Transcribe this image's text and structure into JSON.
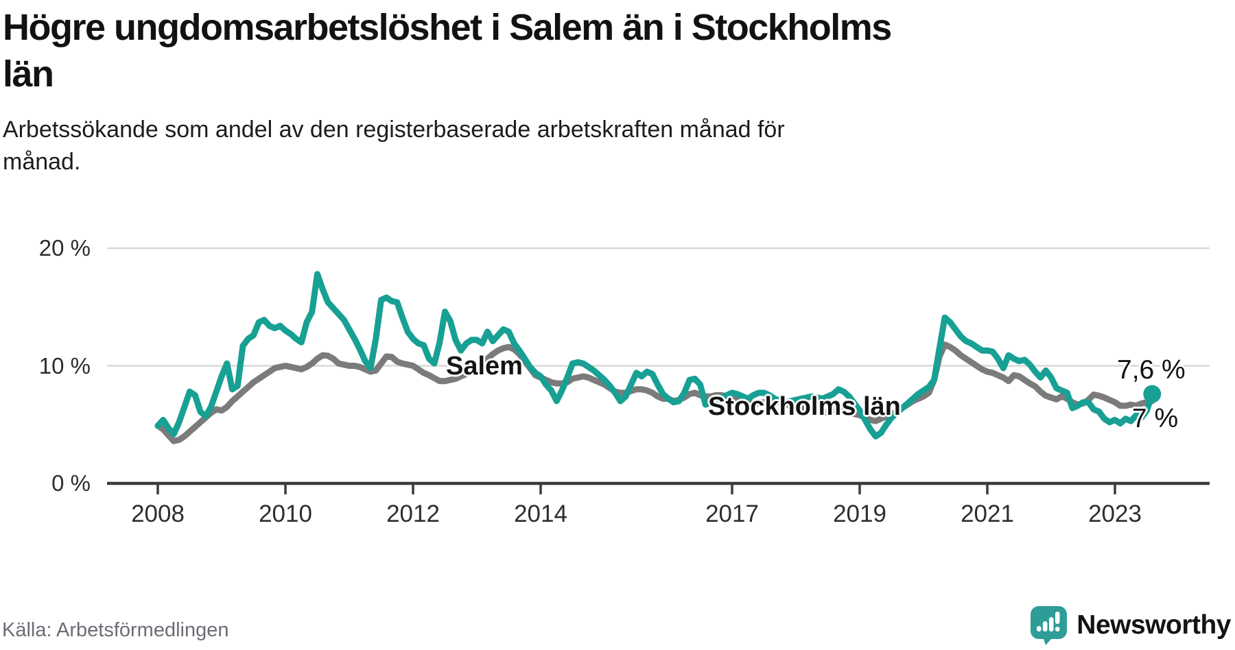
{
  "header": {
    "title_lines": [
      "Högre ungdomsarbetslöshet i Salem än i Stockholms",
      "län"
    ],
    "subtitle_lines": [
      "Arbetssökande som andel av den registerbaserade arbetskraften månad för",
      "månad."
    ]
  },
  "chart_data": {
    "type": "line",
    "unit": "%",
    "x_start": "2008-01",
    "x_frequency": "monthly",
    "x_ticks": [
      2008,
      2010,
      2012,
      2014,
      2017,
      2019,
      2021,
      2023
    ],
    "y_ticks": [
      {
        "value": 20,
        "label": "20 %"
      },
      {
        "value": 10,
        "label": "10 %"
      },
      {
        "value": 0,
        "label": "0 %"
      }
    ],
    "ylim": [
      0,
      21
    ],
    "grid": "horizontal",
    "legend_position": "inline-labels",
    "series": [
      {
        "name": "Salem",
        "label": "Salem",
        "color": "#17A093",
        "end_label": "7,6 %",
        "end_value": 7.6,
        "end_marker": true,
        "values": [
          4.9,
          5.4,
          4.7,
          4.2,
          5.2,
          6.5,
          7.8,
          7.5,
          6.1,
          5.7,
          6.5,
          7.8,
          9.1,
          10.2,
          8.0,
          8.3,
          11.7,
          12.3,
          12.6,
          13.7,
          13.9,
          13.4,
          13.2,
          13.4,
          13.0,
          12.7,
          12.3,
          12.0,
          13.7,
          14.6,
          17.8,
          16.5,
          15.4,
          14.9,
          14.4,
          13.9,
          13.1,
          12.3,
          11.4,
          10.4,
          9.8,
          12.3,
          15.6,
          15.8,
          15.5,
          15.4,
          14.1,
          12.9,
          12.3,
          11.9,
          11.75,
          10.6,
          10.2,
          12.0,
          14.6,
          13.8,
          12.2,
          11.3,
          11.9,
          12.2,
          12.2,
          11.9,
          12.9,
          12.1,
          12.6,
          13.1,
          12.9,
          11.9,
          11.3,
          10.6,
          9.9,
          9.4,
          9.1,
          8.4,
          7.9,
          7.0,
          7.9,
          9.0,
          10.2,
          10.3,
          10.2,
          9.9,
          9.6,
          9.2,
          8.8,
          8.3,
          7.7,
          7.0,
          7.4,
          8.4,
          9.4,
          9.1,
          9.5,
          9.3,
          8.4,
          7.6,
          7.2,
          6.9,
          7.0,
          7.7,
          8.8,
          8.9,
          8.4,
          6.7,
          6.9,
          7.1,
          7.3,
          7.5,
          7.7,
          7.6,
          7.4,
          7.2,
          7.5,
          7.7,
          7.7,
          7.5,
          7.2,
          7.0,
          6.9,
          7.0,
          7.1,
          7.2,
          7.3,
          7.4,
          7.3,
          7.2,
          7.4,
          7.6,
          8.0,
          7.8,
          7.4,
          6.8,
          6.2,
          5.4,
          4.6,
          4.0,
          4.3,
          5.0,
          5.6,
          6.0,
          6.4,
          6.8,
          7.2,
          7.6,
          7.9,
          8.2,
          8.8,
          11.5,
          14.1,
          13.7,
          13.1,
          12.5,
          12.1,
          11.9,
          11.6,
          11.3,
          11.3,
          11.2,
          10.6,
          9.8,
          10.9,
          10.6,
          10.4,
          10.5,
          10.1,
          9.5,
          9.0,
          9.6,
          9.0,
          8.1,
          7.9,
          7.7,
          6.4,
          6.6,
          6.9,
          6.9,
          6.3,
          6.1,
          5.5,
          5.2,
          5.4,
          5.1,
          5.5,
          5.3,
          5.8,
          5.6,
          6.2,
          7.6
        ]
      },
      {
        "name": "Stockholms län",
        "label": "Stockholms län",
        "color": "#7B7B7B",
        "end_label": "7 %",
        "end_value": 7.0,
        "end_marker": false,
        "values": [
          4.9,
          4.6,
          4.1,
          3.6,
          3.7,
          4.0,
          4.4,
          4.8,
          5.2,
          5.6,
          6.0,
          6.3,
          6.2,
          6.5,
          7.0,
          7.4,
          7.8,
          8.2,
          8.6,
          8.9,
          9.2,
          9.5,
          9.8,
          9.9,
          10.0,
          9.9,
          9.8,
          9.7,
          9.9,
          10.2,
          10.6,
          10.9,
          10.85,
          10.6,
          10.2,
          10.1,
          10.0,
          10.0,
          9.9,
          9.7,
          9.5,
          9.6,
          10.2,
          10.8,
          10.75,
          10.35,
          10.2,
          10.1,
          10.0,
          9.7,
          9.4,
          9.2,
          8.95,
          8.7,
          8.7,
          8.8,
          8.9,
          9.1,
          9.3,
          9.6,
          9.8,
          10.2,
          10.6,
          11.0,
          11.3,
          11.5,
          11.6,
          11.4,
          11.0,
          10.4,
          9.8,
          9.2,
          9.0,
          8.8,
          8.6,
          8.5,
          8.5,
          8.6,
          8.9,
          9.0,
          9.1,
          9.0,
          8.8,
          8.6,
          8.4,
          8.1,
          7.8,
          7.7,
          7.7,
          7.85,
          8.0,
          8.0,
          7.9,
          7.7,
          7.4,
          7.2,
          7.2,
          7.0,
          7.1,
          7.3,
          7.6,
          7.7,
          7.5,
          7.4,
          7.4,
          7.5,
          7.5,
          7.4,
          7.3,
          7.2,
          7.0,
          6.9,
          6.8,
          6.8,
          6.9,
          7.0,
          7.0,
          6.9,
          6.7,
          6.6,
          6.5,
          6.4,
          6.3,
          6.2,
          6.1,
          6.0,
          6.1,
          6.2,
          6.3,
          6.2,
          6.0,
          5.9,
          5.8,
          5.6,
          5.4,
          5.3,
          5.5,
          5.7,
          5.9,
          6.1,
          6.4,
          6.7,
          7.0,
          7.2,
          7.4,
          7.7,
          8.8,
          10.8,
          11.8,
          11.6,
          11.3,
          10.9,
          10.6,
          10.3,
          10.0,
          9.7,
          9.5,
          9.4,
          9.2,
          9.0,
          8.7,
          9.2,
          9.1,
          8.8,
          8.5,
          8.25,
          7.8,
          7.45,
          7.3,
          7.15,
          7.4,
          7.2,
          6.9,
          6.7,
          6.8,
          7.1,
          7.55,
          7.45,
          7.3,
          7.1,
          6.9,
          6.6,
          6.6,
          6.7,
          6.6,
          6.8,
          6.9,
          7.0
        ]
      }
    ],
    "colors": {
      "grid": "#D9D9D9",
      "axis": "#3B3B3B",
      "tick_label": "#2D2D2D"
    }
  },
  "footer": {
    "source": "Källa: Arbetsförmedlingen",
    "brand": "Newsworthy",
    "brand_color": "#3FA2A0"
  }
}
